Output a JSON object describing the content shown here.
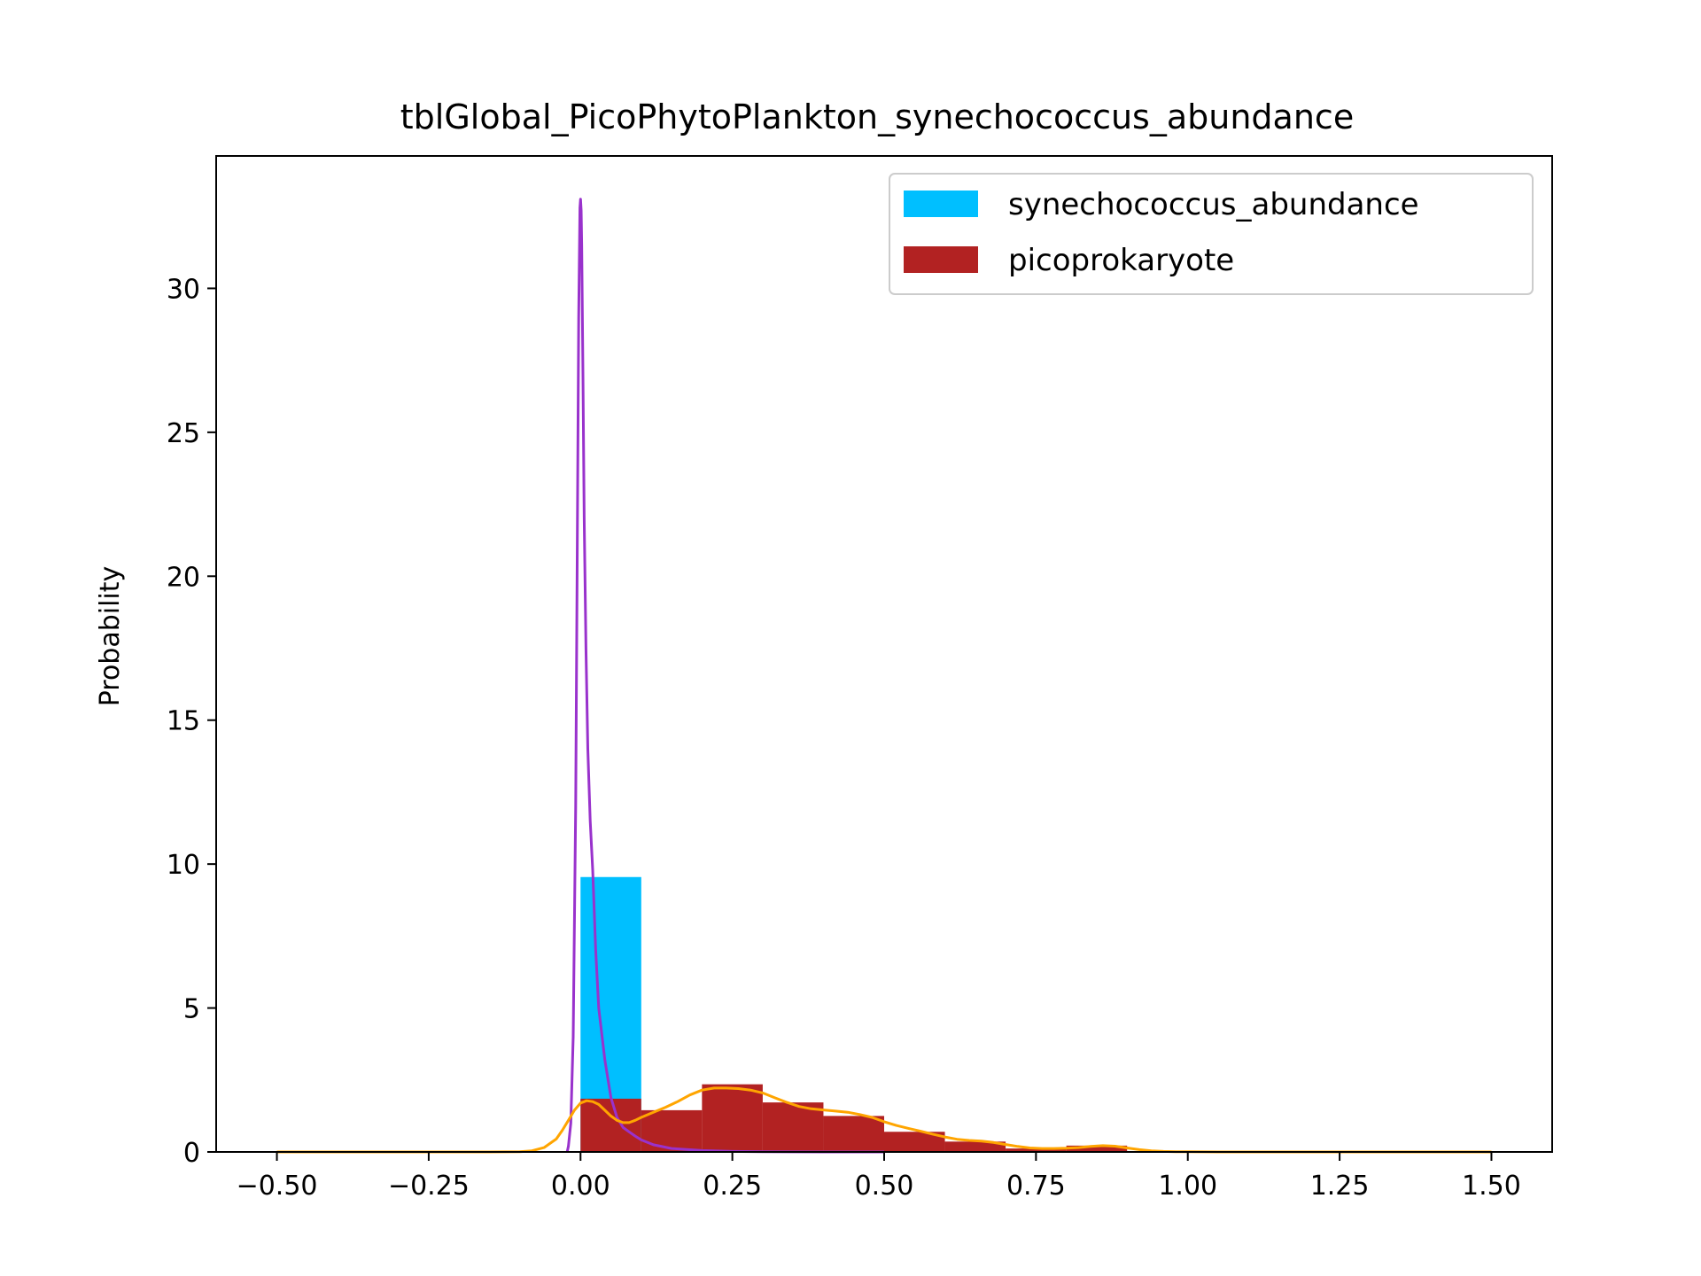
{
  "chart_data": {
    "type": "bar",
    "title": "tblGlobal_PicoPhytoPlankton_synechococcus_abundance",
    "xlabel": "",
    "ylabel": "Probability",
    "xlim": [
      -0.6,
      1.6
    ],
    "ylim": [
      0,
      34.6
    ],
    "xticks": [
      -0.5,
      -0.25,
      0.0,
      0.25,
      0.5,
      0.75,
      1.0,
      1.25,
      1.5
    ],
    "xtick_labels": [
      "−0.50",
      "−0.25",
      "0.00",
      "0.25",
      "0.50",
      "0.75",
      "1.00",
      "1.25",
      "1.50"
    ],
    "yticks": [
      0,
      5,
      10,
      15,
      20,
      25,
      30
    ],
    "ytick_labels": [
      "0",
      "5",
      "10",
      "15",
      "20",
      "25",
      "30"
    ],
    "grid": false,
    "legend_position": "top-right",
    "histograms": [
      {
        "name": "synechococcus_abundance",
        "color": "#00BFFF",
        "bins": [
          [
            0.0,
            0.1,
            9.55
          ]
        ]
      },
      {
        "name": "picoprokaryote",
        "color": "#B22222",
        "bins": [
          [
            0.0,
            0.1,
            1.85
          ],
          [
            0.1,
            0.2,
            1.45
          ],
          [
            0.2,
            0.3,
            2.35
          ],
          [
            0.3,
            0.4,
            1.72
          ],
          [
            0.4,
            0.5,
            1.25
          ],
          [
            0.5,
            0.6,
            0.7
          ],
          [
            0.6,
            0.7,
            0.36
          ],
          [
            0.7,
            0.8,
            0.12
          ],
          [
            0.8,
            0.9,
            0.22
          ],
          [
            0.9,
            1.0,
            0.03
          ]
        ]
      }
    ],
    "density_curves": [
      {
        "color": "#9932CC",
        "x": [
          -0.022,
          -0.02,
          -0.016,
          -0.012,
          -0.008,
          -0.005,
          -0.003,
          -0.001,
          0.0,
          0.001,
          0.002,
          0.004,
          0.006,
          0.009,
          0.012,
          0.016,
          0.02,
          0.025,
          0.03,
          0.04,
          0.05,
          0.06,
          0.07,
          0.08,
          0.09,
          0.1,
          0.12,
          0.15,
          0.2,
          0.25,
          0.3,
          0.4,
          0.5
        ],
        "y": [
          0.0,
          0.2,
          1.0,
          4.0,
          12.0,
          22.0,
          29.0,
          32.8,
          33.1,
          32.7,
          31.5,
          27.0,
          22.0,
          17.5,
          14.0,
          11.5,
          9.8,
          7.0,
          5.0,
          3.2,
          1.9,
          1.2,
          0.85,
          0.7,
          0.55,
          0.42,
          0.25,
          0.12,
          0.05,
          0.02,
          0.01,
          0.0,
          0.0
        ]
      },
      {
        "color": "#FFA500",
        "x": [
          -0.5,
          -0.15,
          -0.1,
          -0.08,
          -0.06,
          -0.04,
          -0.03,
          -0.02,
          -0.01,
          0.0,
          0.01,
          0.02,
          0.03,
          0.04,
          0.05,
          0.06,
          0.07,
          0.08,
          0.09,
          0.1,
          0.12,
          0.14,
          0.16,
          0.18,
          0.2,
          0.22,
          0.24,
          0.26,
          0.28,
          0.3,
          0.32,
          0.34,
          0.36,
          0.38,
          0.4,
          0.42,
          0.44,
          0.46,
          0.48,
          0.5,
          0.52,
          0.54,
          0.56,
          0.58,
          0.6,
          0.62,
          0.64,
          0.66,
          0.68,
          0.7,
          0.72,
          0.74,
          0.76,
          0.78,
          0.8,
          0.82,
          0.84,
          0.86,
          0.88,
          0.9,
          0.92,
          0.94,
          0.96,
          0.98,
          1.0,
          1.05,
          1.1,
          1.5
        ],
        "y": [
          0.0,
          0.0,
          0.01,
          0.04,
          0.15,
          0.45,
          0.75,
          1.1,
          1.45,
          1.7,
          1.78,
          1.75,
          1.65,
          1.45,
          1.25,
          1.1,
          1.02,
          1.02,
          1.1,
          1.2,
          1.38,
          1.55,
          1.75,
          1.98,
          2.15,
          2.22,
          2.22,
          2.2,
          2.15,
          2.05,
          1.88,
          1.72,
          1.58,
          1.5,
          1.46,
          1.42,
          1.38,
          1.3,
          1.2,
          1.05,
          0.92,
          0.82,
          0.72,
          0.62,
          0.52,
          0.44,
          0.4,
          0.38,
          0.33,
          0.26,
          0.19,
          0.14,
          0.12,
          0.12,
          0.13,
          0.15,
          0.19,
          0.22,
          0.2,
          0.14,
          0.08,
          0.04,
          0.02,
          0.01,
          0.005,
          0.0,
          0.0,
          0.0
        ]
      }
    ]
  }
}
